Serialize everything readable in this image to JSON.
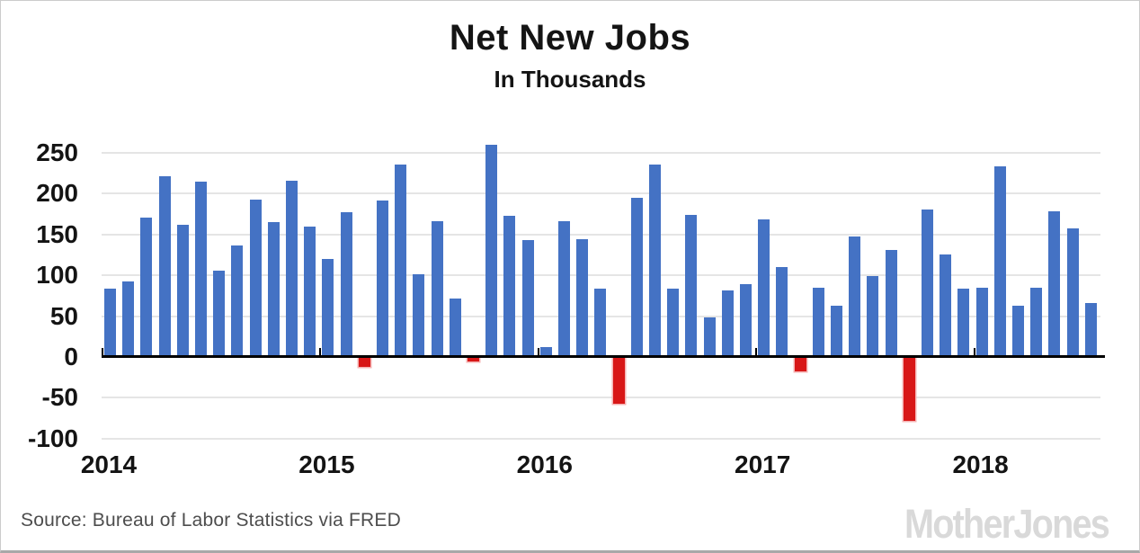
{
  "page": {
    "title": "Net New Jobs",
    "subtitle": "In Thousands",
    "source": "Source: Bureau of Labor Statistics via FRED",
    "logo": "MotherJones"
  },
  "colors": {
    "positive_bar": "#4472C4",
    "negative_bar": "#D81717",
    "negative_bar_outline": "#F4B1B1",
    "gridline": "#E5E5E5",
    "axis": "#000000",
    "label_text": "#141414",
    "source_text": "#4D4D4D",
    "logo_text": "#D9D9D9"
  },
  "chart_data": {
    "type": "bar",
    "title": "Net New Jobs",
    "subtitle": "In Thousands",
    "unit": "thousands of jobs per month",
    "grid": true,
    "x_tick_labels": [
      "2014",
      "2015",
      "2016",
      "2017",
      "2018"
    ],
    "y_ticks": [
      250,
      200,
      150,
      100,
      50,
      0,
      -50,
      -100
    ],
    "y_tick_labels": [
      "250",
      "200",
      "150",
      "100",
      "50",
      "0",
      "-50",
      "-100"
    ],
    "ylim": [
      -100,
      265
    ],
    "categories": [
      "2014-01",
      "2014-02",
      "2014-03",
      "2014-04",
      "2014-05",
      "2014-06",
      "2014-07",
      "2014-08",
      "2014-09",
      "2014-10",
      "2014-11",
      "2014-12",
      "2015-01",
      "2015-02",
      "2015-03",
      "2015-04",
      "2015-05",
      "2015-06",
      "2015-07",
      "2015-08",
      "2015-09",
      "2015-10",
      "2015-11",
      "2015-12",
      "2016-01",
      "2016-02",
      "2016-03",
      "2016-04",
      "2016-05",
      "2016-06",
      "2016-07",
      "2016-08",
      "2016-09",
      "2016-10",
      "2016-11",
      "2016-12",
      "2017-01",
      "2017-02",
      "2017-03",
      "2017-04",
      "2017-05",
      "2017-06",
      "2017-07",
      "2017-08",
      "2017-09",
      "2017-10",
      "2017-11",
      "2017-12",
      "2018-01",
      "2018-02",
      "2018-03",
      "2018-04",
      "2018-05",
      "2018-06",
      "2018-07"
    ],
    "values": [
      84,
      92,
      171,
      221,
      162,
      215,
      106,
      136,
      193,
      165,
      216,
      160,
      120,
      177,
      -12,
      191,
      236,
      101,
      166,
      72,
      -5,
      260,
      173,
      143,
      12,
      166,
      144,
      84,
      -57,
      195,
      235,
      84,
      174,
      49,
      81,
      89,
      168,
      110,
      -17,
      85,
      63,
      148,
      99,
      131,
      -78,
      180,
      125,
      84,
      85,
      233,
      63,
      85,
      178,
      157,
      66
    ]
  }
}
